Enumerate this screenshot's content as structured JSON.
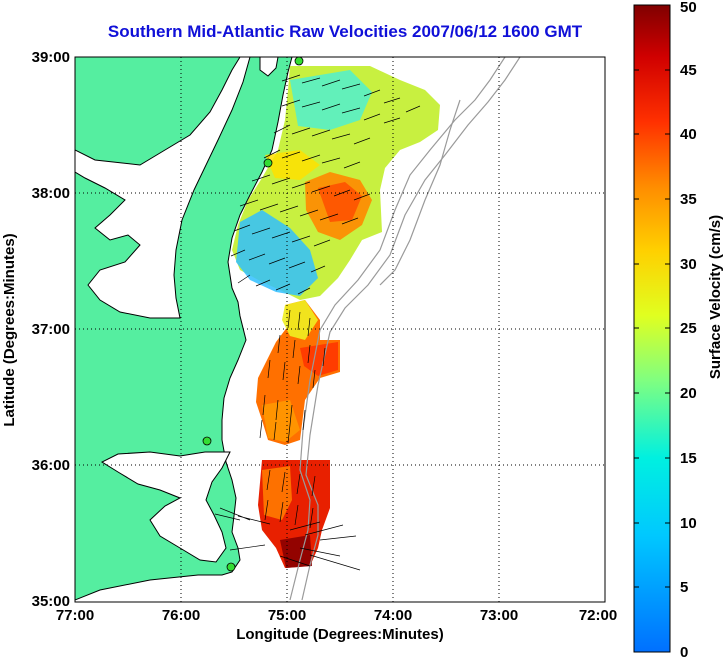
{
  "title": "Southern Mid-Atlantic Raw Velocities 2007/06/12 1600 GMT",
  "map": {
    "xlabel": "Longitude (Degrees:Minutes)",
    "ylabel": "Latitude (Degrees:Minutes)",
    "x_ticks": [
      "77:00",
      "76:00",
      "75:00",
      "74:00",
      "73:00",
      "72:00"
    ],
    "y_ticks": [
      "39:00",
      "38:00",
      "37:00",
      "36:00",
      "35:00"
    ],
    "land_color": "#55eea0",
    "grid": "dotted"
  },
  "colorbar": {
    "label": "Surface Velocity (cm/s)",
    "ticks": [
      "0",
      "5",
      "10",
      "15",
      "20",
      "25",
      "30",
      "35",
      "40",
      "45",
      "50"
    ],
    "range": [
      0,
      50
    ]
  }
}
